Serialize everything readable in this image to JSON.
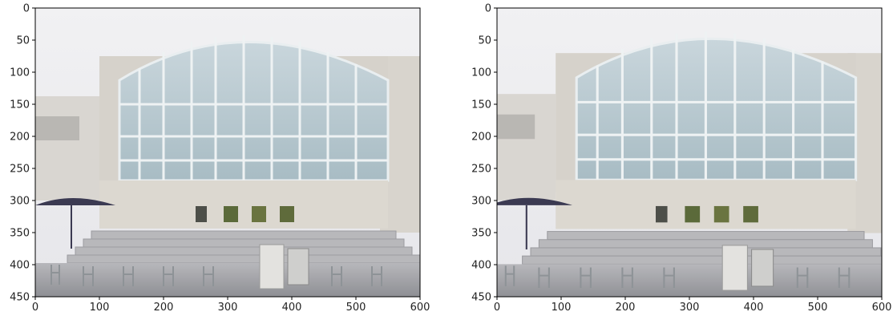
{
  "panels": [
    {
      "name": "left-photo",
      "image_description": "building photo (original crop)",
      "x_ticks": [
        "0",
        "100",
        "200",
        "300",
        "400",
        "500",
        "600"
      ],
      "y_ticks": [
        "0",
        "50",
        "100",
        "150",
        "200",
        "250",
        "300",
        "350",
        "400",
        "450"
      ],
      "x_range": [
        0,
        600
      ],
      "y_range": [
        0,
        450
      ]
    },
    {
      "name": "right-photo",
      "image_description": "building photo (transformed view)",
      "x_ticks": [
        "0",
        "100",
        "200",
        "300",
        "400",
        "500",
        "600"
      ],
      "y_ticks": [
        "0",
        "50",
        "100",
        "150",
        "200",
        "250",
        "300",
        "350",
        "400",
        "450"
      ],
      "x_range": [
        0,
        600
      ],
      "y_range": [
        0,
        450
      ]
    }
  ]
}
